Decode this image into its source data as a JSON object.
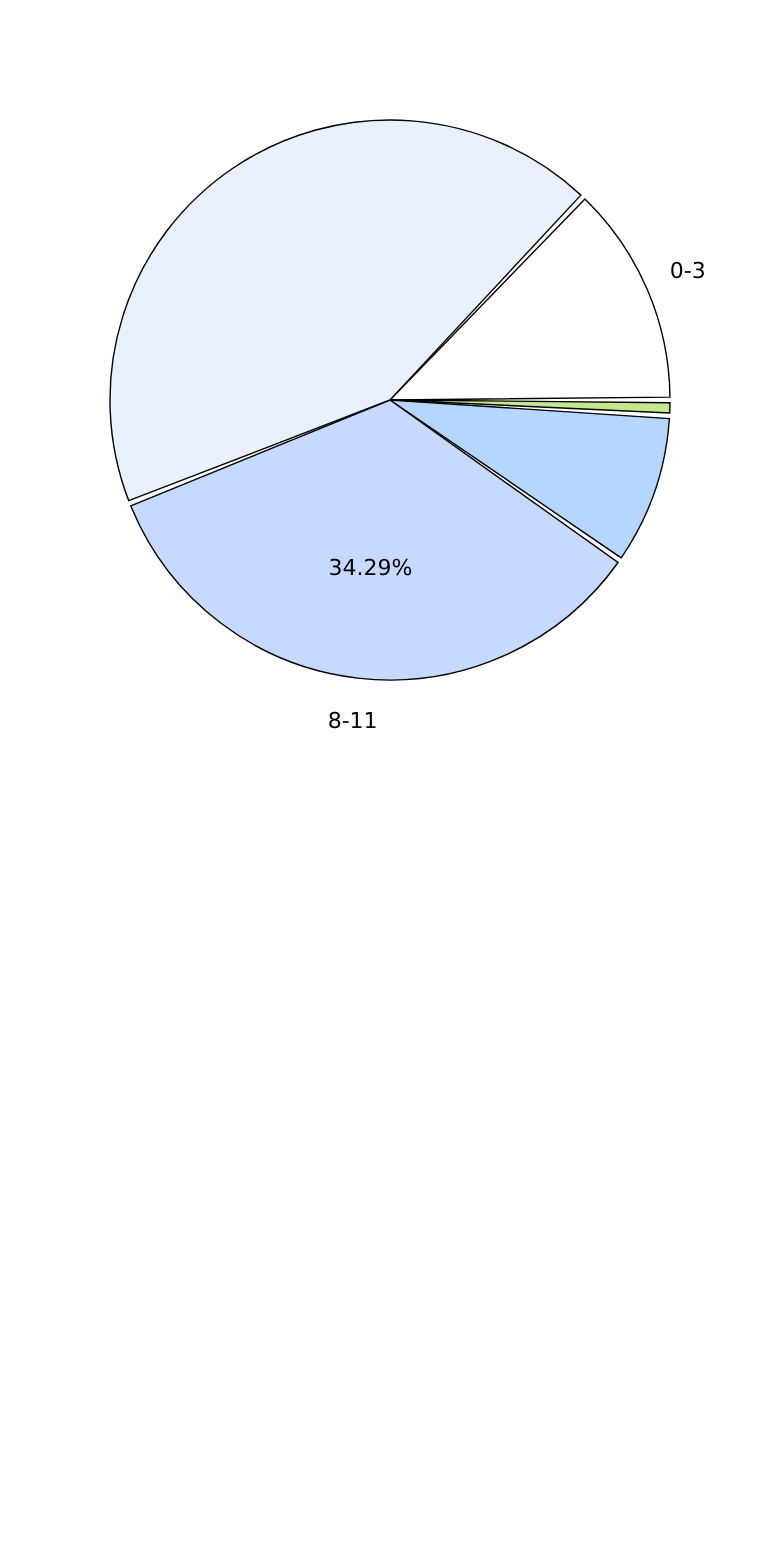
{
  "chart_data": {
    "type": "pie",
    "categories": [
      "0-3",
      null,
      null,
      "8-11",
      null
    ],
    "values": [
      12.9,
      0.9,
      8.8,
      34.29,
      43.11
    ],
    "colors": [
      "#ffffff",
      "#c4e88c",
      "#b5d6ff",
      "#c6d9ff",
      "#e9f1ff"
    ],
    "value_labels": [
      null,
      null,
      null,
      "34.29%",
      null
    ]
  }
}
